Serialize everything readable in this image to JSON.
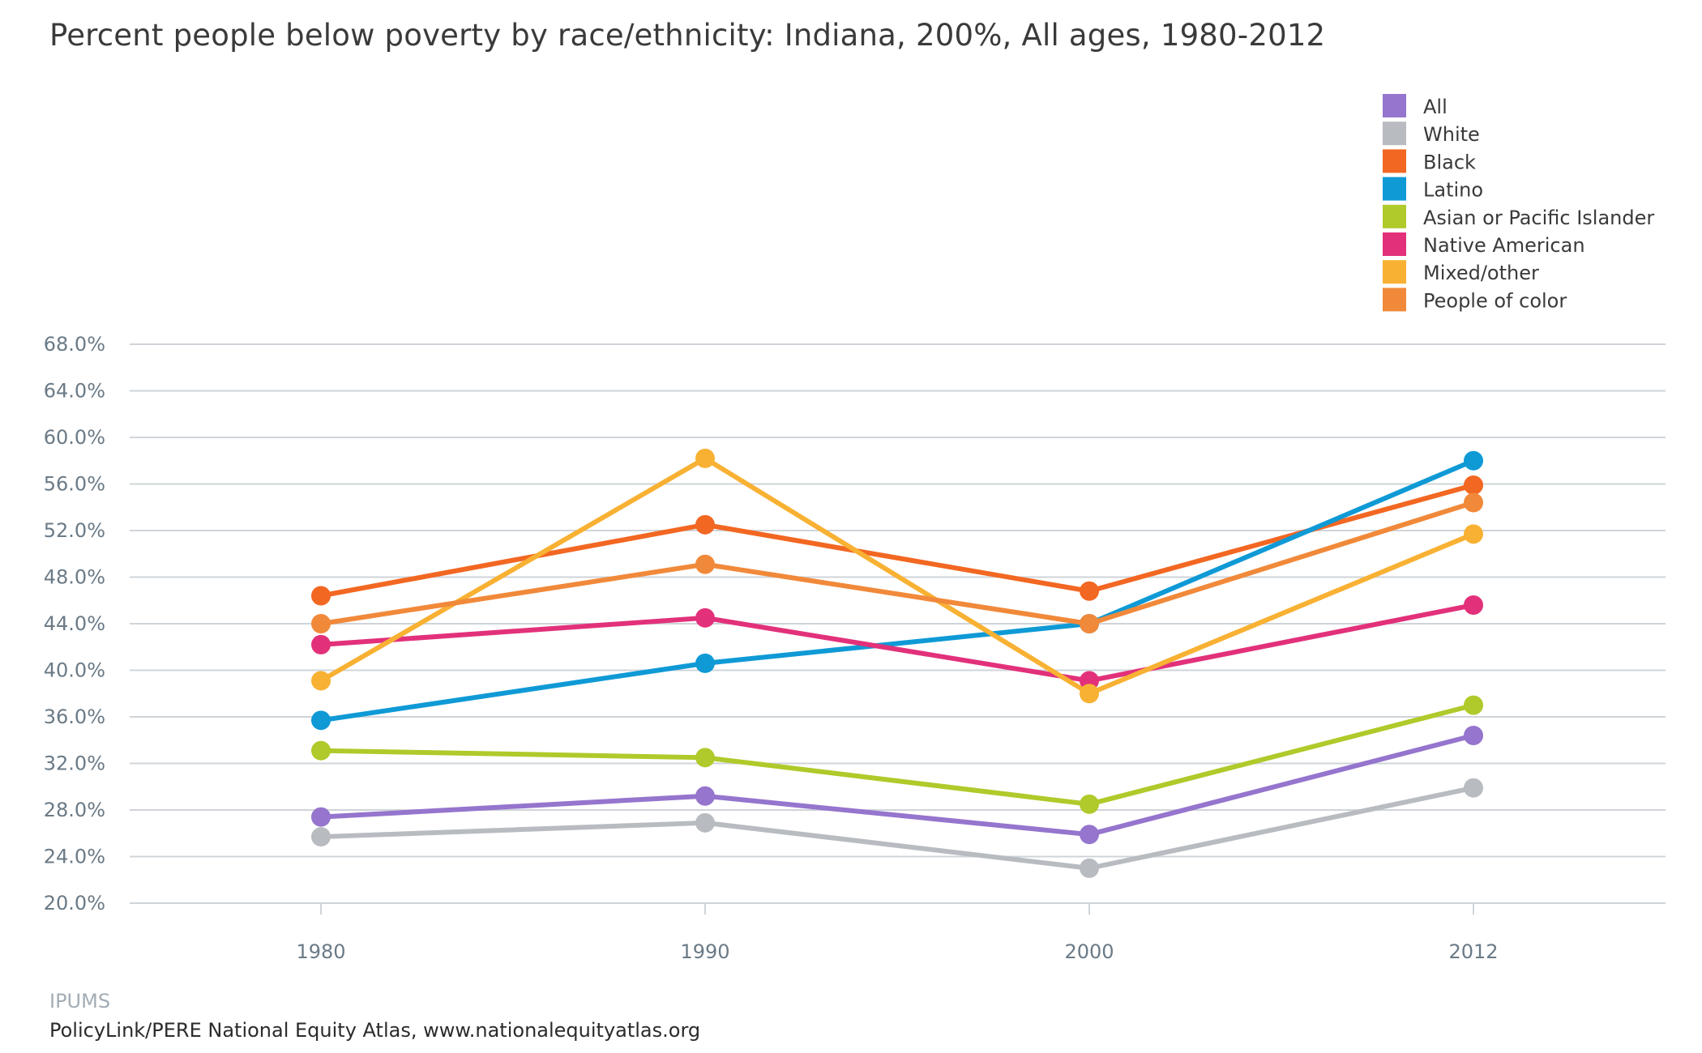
{
  "chart_data": {
    "type": "line",
    "title": "Percent people below poverty by race/ethnicity: Indiana, 200%, All ages, 1980-2012",
    "x": [
      "1980",
      "1990",
      "2000",
      "2012"
    ],
    "ylim": [
      20,
      68
    ],
    "yticks": [
      20,
      24,
      28,
      32,
      36,
      40,
      44,
      48,
      52,
      56,
      60,
      64,
      68
    ],
    "ytick_format": "percent_1dp",
    "grid": "horizontal",
    "legend_position": "top-right",
    "series": [
      {
        "name": "All",
        "color": "#9575cd",
        "values": [
          27.4,
          29.2,
          25.9,
          34.4
        ]
      },
      {
        "name": "White",
        "color": "#b8bcc1",
        "values": [
          25.7,
          26.9,
          23.0,
          29.9
        ]
      },
      {
        "name": "Black",
        "color": "#f26722",
        "values": [
          46.4,
          52.5,
          46.8,
          55.9
        ]
      },
      {
        "name": "Latino",
        "color": "#0f9ad6",
        "values": [
          35.7,
          40.6,
          44.0,
          58.0
        ]
      },
      {
        "name": "Asian or Pacific Islander",
        "color": "#afca2a",
        "values": [
          33.1,
          32.5,
          28.5,
          37.0
        ]
      },
      {
        "name": "Native American",
        "color": "#e2317a",
        "values": [
          42.2,
          44.5,
          39.1,
          45.6
        ]
      },
      {
        "name": "Mixed/other",
        "color": "#f8b133",
        "values": [
          39.1,
          58.2,
          38.0,
          51.7
        ]
      },
      {
        "name": "People of color",
        "color": "#f1893a",
        "values": [
          44.0,
          49.1,
          44.0,
          54.4
        ]
      }
    ]
  },
  "footer": {
    "source": "IPUMS",
    "credit": "PolicyLink/PERE National Equity Atlas, www.nationalequityatlas.org"
  }
}
